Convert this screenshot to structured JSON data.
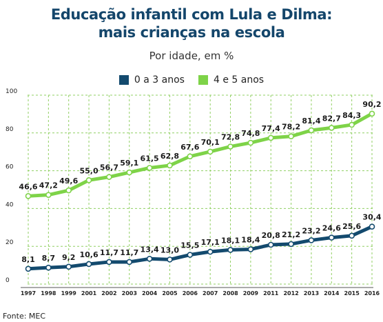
{
  "title_line1": "Educação infantil com Lula e Dilma:",
  "title_line2": "mais crianças na escola",
  "subtitle": "Por idade, em %",
  "source": "Fonte: MEC",
  "colors": {
    "series1": "#134a6e",
    "series2": "#7ed348",
    "title": "#14466b",
    "grid": "#8fcf60",
    "marker_fill": "#ffffff"
  },
  "chart_data": {
    "type": "line",
    "x": [
      "1997",
      "1998",
      "1999",
      "2001",
      "2002",
      "2003",
      "2004",
      "2005",
      "2006",
      "2007",
      "2008",
      "2009",
      "2011",
      "2012",
      "2013",
      "2014",
      "2015",
      "2016"
    ],
    "y_ticks": [
      0,
      20,
      40,
      60,
      80,
      100
    ],
    "ylim": [
      0,
      100
    ],
    "grid": true,
    "legend_position": "top",
    "series": [
      {
        "name": "0 a 3 anos",
        "color": "#134a6e",
        "values": [
          8.1,
          8.7,
          9.2,
          10.6,
          11.7,
          11.7,
          13.4,
          13.0,
          15.5,
          17.1,
          18.1,
          18.4,
          20.8,
          21.2,
          23.2,
          24.6,
          25.6,
          30.4
        ],
        "labels": [
          "8,1",
          "8,7",
          "9,2",
          "10,6",
          "11,7",
          "11,7",
          "13,4",
          "13,0",
          "15,5",
          "17,1",
          "18,1",
          "18,4",
          "20,8",
          "21,2",
          "23,2",
          "24,6",
          "25,6",
          "30,4"
        ]
      },
      {
        "name": "4 e 5 anos",
        "color": "#7ed348",
        "values": [
          46.6,
          47.2,
          49.6,
          55.0,
          56.7,
          59.1,
          61.5,
          62.8,
          67.6,
          70.1,
          72.8,
          74.8,
          77.4,
          78.2,
          81.4,
          82.7,
          84.3,
          90.2
        ],
        "labels": [
          "46,6",
          "47,2",
          "49,6",
          "55,0",
          "56,7",
          "59,1",
          "61,5",
          "62,8",
          "67,6",
          "70,1",
          "72,8",
          "74,8",
          "77,4",
          "78,2",
          "81,4",
          "82,7",
          "84,3",
          "90,2"
        ]
      }
    ]
  }
}
